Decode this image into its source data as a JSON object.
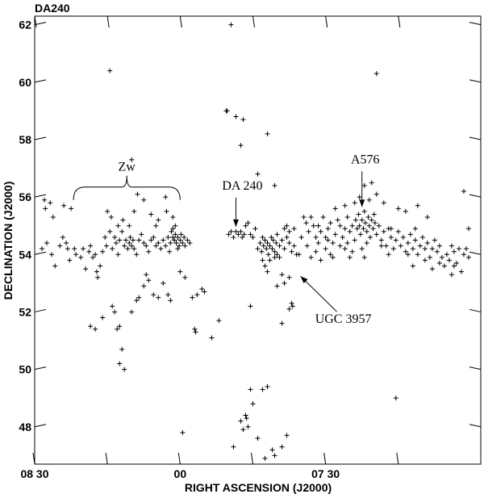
{
  "chart_data": {
    "type": "scatter",
    "title": "DA240",
    "xlabel": "RIGHT ASCENSION (J2000)",
    "ylabel": "DECLINATION (J2000)",
    "x_unit": "minutes of RA after 07h00m",
    "xlim": [
      -2,
      90
    ],
    "ylim": [
      46.7,
      62.3
    ],
    "x_ticks": [
      {
        "value": 90,
        "label": "08 30"
      },
      {
        "value": 60,
        "label": "00"
      },
      {
        "value": 30,
        "label": "07 30"
      }
    ],
    "y_ticks": [
      {
        "value": 48,
        "label": "48"
      },
      {
        "value": 50,
        "label": "50"
      },
      {
        "value": 52,
        "label": "52"
      },
      {
        "value": 54,
        "label": "54"
      },
      {
        "value": 56,
        "label": "56"
      },
      {
        "value": 58,
        "label": "58"
      },
      {
        "value": 60,
        "label": "60"
      },
      {
        "value": 62,
        "label": "62"
      }
    ],
    "grid": false,
    "marker": "+",
    "annotations": [
      {
        "label": "Zw",
        "kind": "brace",
        "x_from": 82,
        "x_to": 60,
        "y": 55.9
      },
      {
        "label": "DA 240",
        "kind": "arrow",
        "target": [
          48.5,
          54.8
        ]
      },
      {
        "label": "A576",
        "kind": "arrow",
        "target": [
          22.5,
          55.6
        ]
      },
      {
        "label": "UGC 3957",
        "kind": "arrow",
        "target": [
          35.5,
          53.3
        ]
      }
    ],
    "points": [
      [
        88.5,
        54.2
      ],
      [
        87.5,
        54.4
      ],
      [
        86.5,
        54.0
      ],
      [
        85.8,
        53.6
      ],
      [
        84.8,
        54.3
      ],
      [
        84.2,
        54.6
      ],
      [
        88.0,
        55.9
      ],
      [
        87.8,
        55.6
      ],
      [
        86.8,
        55.8
      ],
      [
        86.2,
        55.3
      ],
      [
        84.0,
        55.7
      ],
      [
        82.5,
        55.6
      ],
      [
        83.5,
        54.4
      ],
      [
        83.2,
        54.2
      ],
      [
        82.8,
        53.8
      ],
      [
        81.8,
        54.2
      ],
      [
        81.5,
        54.0
      ],
      [
        80.5,
        53.9
      ],
      [
        80.0,
        54.2
      ],
      [
        79.5,
        53.5
      ],
      [
        78.8,
        54.1
      ],
      [
        78.5,
        54.3
      ],
      [
        78.0,
        53.9
      ],
      [
        77.5,
        54.0
      ],
      [
        77.2,
        53.4
      ],
      [
        77.0,
        53.2
      ],
      [
        76.5,
        53.6
      ],
      [
        76.0,
        54.1
      ],
      [
        75.5,
        54.6
      ],
      [
        75.2,
        54.3
      ],
      [
        74.5,
        54.8
      ],
      [
        74.0,
        54.2
      ],
      [
        73.5,
        54.6
      ],
      [
        73.2,
        54.4
      ],
      [
        72.8,
        54.0
      ],
      [
        72.5,
        54.5
      ],
      [
        72.0,
        54.8
      ],
      [
        71.5,
        54.3
      ],
      [
        71.2,
        54.5
      ],
      [
        70.8,
        54.2
      ],
      [
        70.5,
        54.4
      ],
      [
        70.3,
        54.6
      ],
      [
        70.0,
        54.3
      ],
      [
        69.7,
        54.5
      ],
      [
        69.5,
        54.2
      ],
      [
        69.0,
        54.0
      ],
      [
        68.5,
        54.5
      ],
      [
        68.0,
        54.7
      ],
      [
        67.5,
        54.4
      ],
      [
        67.0,
        54.3
      ],
      [
        66.5,
        54.1
      ],
      [
        66.0,
        54.5
      ],
      [
        65.5,
        54.6
      ],
      [
        65.0,
        54.3
      ],
      [
        64.5,
        54.4
      ],
      [
        64.0,
        54.2
      ],
      [
        63.5,
        54.5
      ],
      [
        63.0,
        54.3
      ],
      [
        62.5,
        54.6
      ],
      [
        62.0,
        54.4
      ],
      [
        61.8,
        54.8
      ],
      [
        61.5,
        54.6
      ],
      [
        61.2,
        54.5
      ],
      [
        61.0,
        54.7
      ],
      [
        60.8,
        54.4
      ],
      [
        60.5,
        54.6
      ],
      [
        60.2,
        54.3
      ],
      [
        60.0,
        54.5
      ],
      [
        59.8,
        54.7
      ],
      [
        59.5,
        54.4
      ],
      [
        59.2,
        54.6
      ],
      [
        59.0,
        54.3
      ],
      [
        58.5,
        54.5
      ],
      [
        58.0,
        54.4
      ],
      [
        61.5,
        54.9
      ],
      [
        61.0,
        55.0
      ],
      [
        60.5,
        54.2
      ],
      [
        62.2,
        54.1
      ],
      [
        75.0,
        55.5
      ],
      [
        74.2,
        55.3
      ],
      [
        72.8,
        55.0
      ],
      [
        71.8,
        55.2
      ],
      [
        70.5,
        55.0
      ],
      [
        69.5,
        55.5
      ],
      [
        68.8,
        56.1
      ],
      [
        67.5,
        55.9
      ],
      [
        66.0,
        55.4
      ],
      [
        65.0,
        55.0
      ],
      [
        64.5,
        55.2
      ],
      [
        63.0,
        56.0
      ],
      [
        62.8,
        55.5
      ],
      [
        61.5,
        55.3
      ],
      [
        70.0,
        57.3
      ],
      [
        74.5,
        60.4
      ],
      [
        78.5,
        51.5
      ],
      [
        77.5,
        51.4
      ],
      [
        76.0,
        51.8
      ],
      [
        74.0,
        52.2
      ],
      [
        73.5,
        52.0
      ],
      [
        73.0,
        51.4
      ],
      [
        72.5,
        51.5
      ],
      [
        72.0,
        50.7
      ],
      [
        71.5,
        50.0
      ],
      [
        70.0,
        52.0
      ],
      [
        69.0,
        52.4
      ],
      [
        68.5,
        52.5
      ],
      [
        67.5,
        52.9
      ],
      [
        67.0,
        53.3
      ],
      [
        66.5,
        53.1
      ],
      [
        65.5,
        52.6
      ],
      [
        64.5,
        52.5
      ],
      [
        63.5,
        53.0
      ],
      [
        62.5,
        52.6
      ],
      [
        62.0,
        52.4
      ],
      [
        60.0,
        53.4
      ],
      [
        59.0,
        53.2
      ],
      [
        57.5,
        52.5
      ],
      [
        56.5,
        52.6
      ],
      [
        55.5,
        52.8
      ],
      [
        55.0,
        52.7
      ],
      [
        53.5,
        51.1
      ],
      [
        52.0,
        51.7
      ],
      [
        57.0,
        51.4
      ],
      [
        56.8,
        51.3
      ],
      [
        59.5,
        47.8
      ],
      [
        72.5,
        50.2
      ],
      [
        50.0,
        54.7
      ],
      [
        49.5,
        54.8
      ],
      [
        49.0,
        54.6
      ],
      [
        48.5,
        54.8
      ],
      [
        48.0,
        54.7
      ],
      [
        47.5,
        54.8
      ],
      [
        47.2,
        54.6
      ],
      [
        46.8,
        54.7
      ],
      [
        46.5,
        55.0
      ],
      [
        46.0,
        55.1
      ],
      [
        45.5,
        54.7
      ],
      [
        45.0,
        54.6
      ],
      [
        44.5,
        54.9
      ],
      [
        50.5,
        59.0
      ],
      [
        50.3,
        59.0
      ],
      [
        48.5,
        58.8
      ],
      [
        47.0,
        58.7
      ],
      [
        47.5,
        57.8
      ],
      [
        42.0,
        58.2
      ],
      [
        44.0,
        56.8
      ],
      [
        40.5,
        56.4
      ],
      [
        49.5,
        62.0
      ],
      [
        44.0,
        54.2
      ],
      [
        43.5,
        54.4
      ],
      [
        43.2,
        54.1
      ],
      [
        43.0,
        54.6
      ],
      [
        42.8,
        54.3
      ],
      [
        42.5,
        54.5
      ],
      [
        42.2,
        54.2
      ],
      [
        42.0,
        54.4
      ],
      [
        41.8,
        54.0
      ],
      [
        41.5,
        54.3
      ],
      [
        41.2,
        54.6
      ],
      [
        41.0,
        54.2
      ],
      [
        40.8,
        54.5
      ],
      [
        40.5,
        54.1
      ],
      [
        40.2,
        54.4
      ],
      [
        40.0,
        54.7
      ],
      [
        39.5,
        54.3
      ],
      [
        39.0,
        54.5
      ],
      [
        38.5,
        54.2
      ],
      [
        38.0,
        54.6
      ],
      [
        37.5,
        54.4
      ],
      [
        37.0,
        54.1
      ],
      [
        36.5,
        54.3
      ],
      [
        36.0,
        54.0
      ],
      [
        43.0,
        53.8
      ],
      [
        42.5,
        53.6
      ],
      [
        42.0,
        53.4
      ],
      [
        41.5,
        53.8
      ],
      [
        40.5,
        53.9
      ],
      [
        40.0,
        54.0
      ],
      [
        39.5,
        53.9
      ],
      [
        38.5,
        54.9
      ],
      [
        38.0,
        55.0
      ],
      [
        37.5,
        54.8
      ],
      [
        36.5,
        54.9
      ],
      [
        39.0,
        53.3
      ],
      [
        40.0,
        52.9
      ],
      [
        38.5,
        53.0
      ],
      [
        37.5,
        53.2
      ],
      [
        37.0,
        52.3
      ],
      [
        36.8,
        52.2
      ],
      [
        37.5,
        52.1
      ],
      [
        39.0,
        51.6
      ],
      [
        45.5,
        52.2
      ],
      [
        46.5,
        48.4
      ],
      [
        46.3,
        48.3
      ],
      [
        46.0,
        48.0
      ],
      [
        47.0,
        47.9
      ],
      [
        45.0,
        48.8
      ],
      [
        45.5,
        49.3
      ],
      [
        43.0,
        49.3
      ],
      [
        42.0,
        49.4
      ],
      [
        44.0,
        47.6
      ],
      [
        41.0,
        47.2
      ],
      [
        40.5,
        47.0
      ],
      [
        38.0,
        47.7
      ],
      [
        39.0,
        47.3
      ],
      [
        42.5,
        46.9
      ],
      [
        49.0,
        47.3
      ],
      [
        47.5,
        48.2
      ],
      [
        34.0,
        55.1
      ],
      [
        33.5,
        54.8
      ],
      [
        33.0,
        55.3
      ],
      [
        32.5,
        55.0
      ],
      [
        32.0,
        54.6
      ],
      [
        31.5,
        55.0
      ],
      [
        31.0,
        54.8
      ],
      [
        30.5,
        55.3
      ],
      [
        30.0,
        54.6
      ],
      [
        29.5,
        54.9
      ],
      [
        29.0,
        55.1
      ],
      [
        28.5,
        54.4
      ],
      [
        28.0,
        54.7
      ],
      [
        27.5,
        55.2
      ],
      [
        27.0,
        55.0
      ],
      [
        26.5,
        54.6
      ],
      [
        26.0,
        54.9
      ],
      [
        25.5,
        55.3
      ],
      [
        25.0,
        54.8
      ],
      [
        24.5,
        55.0
      ],
      [
        24.0,
        54.5
      ],
      [
        23.8,
        55.2
      ],
      [
        23.5,
        54.9
      ],
      [
        23.2,
        55.4
      ],
      [
        23.0,
        55.0
      ],
      [
        22.8,
        54.7
      ],
      [
        22.5,
        55.2
      ],
      [
        22.2,
        54.9
      ],
      [
        22.0,
        55.5
      ],
      [
        21.8,
        55.1
      ],
      [
        21.5,
        54.8
      ],
      [
        21.2,
        55.3
      ],
      [
        21.0,
        55.0
      ],
      [
        20.8,
        54.6
      ],
      [
        20.5,
        55.2
      ],
      [
        20.2,
        54.9
      ],
      [
        20.0,
        55.4
      ],
      [
        19.8,
        55.1
      ],
      [
        19.5,
        54.7
      ],
      [
        19.0,
        55.0
      ],
      [
        18.5,
        54.5
      ],
      [
        18.0,
        54.8
      ],
      [
        17.5,
        54.3
      ],
      [
        17.0,
        54.9
      ],
      [
        16.5,
        54.6
      ],
      [
        16.0,
        54.2
      ],
      [
        15.5,
        54.5
      ],
      [
        15.0,
        54.8
      ],
      [
        14.5,
        54.3
      ],
      [
        14.0,
        54.6
      ],
      [
        13.5,
        54.1
      ],
      [
        13.0,
        54.4
      ],
      [
        12.5,
        54.7
      ],
      [
        12.0,
        54.2
      ],
      [
        11.5,
        54.5
      ],
      [
        11.0,
        54.0
      ],
      [
        10.5,
        54.3
      ],
      [
        10.0,
        54.6
      ],
      [
        9.5,
        54.2
      ],
      [
        9.0,
        54.4
      ],
      [
        8.5,
        53.9
      ],
      [
        8.0,
        54.2
      ],
      [
        7.5,
        54.5
      ],
      [
        7.0,
        54.1
      ],
      [
        6.5,
        54.3
      ],
      [
        6.0,
        53.9
      ],
      [
        5.5,
        53.6
      ],
      [
        5.0,
        54.0
      ],
      [
        4.5,
        53.8
      ],
      [
        4.0,
        54.3
      ],
      [
        3.5,
        54.1
      ],
      [
        3.0,
        53.7
      ],
      [
        2.5,
        54.2
      ],
      [
        2.0,
        53.4
      ],
      [
        1.5,
        54.0
      ],
      [
        1.0,
        54.2
      ],
      [
        0.5,
        53.9
      ],
      [
        22.5,
        54.2
      ],
      [
        22.0,
        53.9
      ],
      [
        21.5,
        54.4
      ],
      [
        24.5,
        54.1
      ],
      [
        25.0,
        53.9
      ],
      [
        26.0,
        54.2
      ],
      [
        27.0,
        54.3
      ],
      [
        28.5,
        53.9
      ],
      [
        29.0,
        54.0
      ],
      [
        30.0,
        54.2
      ],
      [
        31.0,
        53.8
      ],
      [
        32.0,
        54.1
      ],
      [
        33.0,
        53.9
      ],
      [
        15.0,
        55.6
      ],
      [
        13.5,
        55.5
      ],
      [
        11.0,
        55.7
      ],
      [
        9.0,
        55.3
      ],
      [
        18.0,
        55.8
      ],
      [
        22.0,
        56.4
      ],
      [
        19.5,
        56.1
      ],
      [
        1.5,
        56.2
      ],
      [
        0.5,
        54.9
      ],
      [
        19.5,
        60.3
      ],
      [
        15.5,
        49.0
      ],
      [
        34.5,
        55.3
      ],
      [
        33.8,
        54.3
      ],
      [
        35.0,
        54.6
      ],
      [
        35.5,
        54.0
      ],
      [
        28.0,
        55.6
      ],
      [
        26.0,
        55.7
      ],
      [
        24.0,
        55.8
      ],
      [
        21.0,
        55.9
      ],
      [
        23.0,
        56.0
      ],
      [
        20.5,
        56.5
      ],
      [
        12.0,
        53.6
      ],
      [
        9.5,
        53.8
      ],
      [
        6.5,
        53.7
      ],
      [
        3.5,
        53.6
      ],
      [
        8.0,
        53.5
      ],
      [
        4.0,
        53.3
      ],
      [
        13.0,
        54.0
      ],
      [
        16.5,
        54.9
      ],
      [
        17.0,
        54.0
      ],
      [
        18.5,
        54.3
      ],
      [
        11.5,
        54.9
      ],
      [
        29.5,
        54.5
      ],
      [
        31.5,
        54.4
      ],
      [
        25.5,
        54.4
      ]
    ]
  },
  "labels": {
    "plot_title": "DA240",
    "xlabel": "RIGHT ASCENSION (J2000)",
    "ylabel": "DECLINATION (J2000)",
    "zw": "Zw",
    "da240": "DA 240",
    "a576": "A576",
    "ugc": "UGC 3957"
  }
}
